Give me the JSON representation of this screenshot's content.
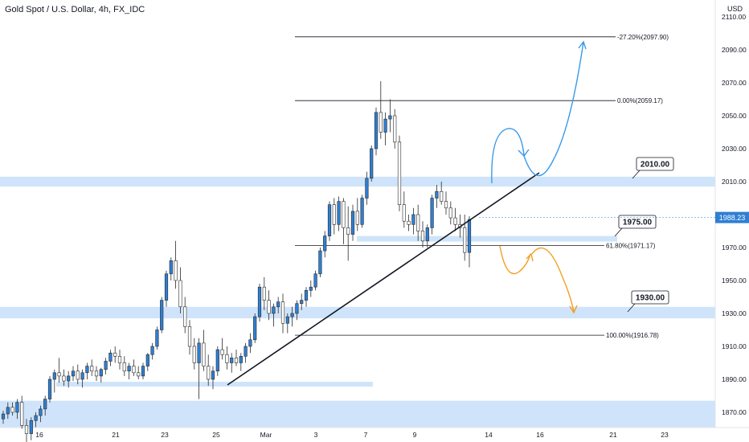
{
  "chart_title": "Gold Spot / U.S. Dollar, 4h, FX_IDC",
  "currency": "USD",
  "chart_data": {
    "type": "candlestick",
    "symbol": "Gold Spot / U.S. Dollar",
    "interval": "4h",
    "source": "FX_IDC",
    "price_axis": {
      "ticks": [
        1870,
        1890,
        1910,
        1930,
        1950,
        1970,
        1990,
        2010,
        2030,
        2050,
        2070,
        2090,
        2110
      ],
      "tick_labels": [
        "1870.00",
        "1890.00",
        "1910.00",
        "1930.00",
        "1950.00",
        "1970.00",
        "1990.00",
        "2010.00",
        "2030.00",
        "2050.00",
        "2070.00",
        "2090.00",
        "2110.00"
      ],
      "range": [
        1861,
        2117
      ]
    },
    "time_axis": {
      "labels": [
        "16",
        "21",
        "23",
        "25",
        "Mar",
        "3",
        "7",
        "9",
        "14",
        "16",
        "21",
        "23"
      ]
    },
    "current_price": "1988.23",
    "colors": {
      "up": "#2f7fd3",
      "down": "#ffffff",
      "wick": "#2b2b2b",
      "zone": "#cfe4fa",
      "up_arrow": "#3a9ae8",
      "down_arrow": "#f0a020"
    },
    "candles": [
      [
        1866,
        1871,
        1863,
        1869
      ],
      [
        1869,
        1876,
        1866,
        1873
      ],
      [
        1873,
        1876,
        1868,
        1870
      ],
      [
        1870,
        1878,
        1866,
        1876
      ],
      [
        1876,
        1880,
        1860,
        1862
      ],
      [
        1862,
        1866,
        1852,
        1857
      ],
      [
        1857,
        1867,
        1853,
        1865
      ],
      [
        1865,
        1870,
        1861,
        1868
      ],
      [
        1868,
        1874,
        1864,
        1872
      ],
      [
        1872,
        1880,
        1868,
        1878
      ],
      [
        1878,
        1892,
        1876,
        1890
      ],
      [
        1890,
        1896,
        1882,
        1894
      ],
      [
        1894,
        1903,
        1888,
        1892
      ],
      [
        1892,
        1896,
        1886,
        1889
      ],
      [
        1889,
        1895,
        1885,
        1892
      ],
      [
        1892,
        1898,
        1889,
        1895
      ],
      [
        1895,
        1899,
        1887,
        1890
      ],
      [
        1890,
        1896,
        1885,
        1894
      ],
      [
        1894,
        1900,
        1890,
        1898
      ],
      [
        1898,
        1902,
        1892,
        1895
      ],
      [
        1895,
        1898,
        1889,
        1892
      ],
      [
        1892,
        1897,
        1888,
        1896
      ],
      [
        1896,
        1903,
        1893,
        1901
      ],
      [
        1901,
        1908,
        1898,
        1906
      ],
      [
        1906,
        1910,
        1900,
        1904
      ],
      [
        1904,
        1908,
        1896,
        1900
      ],
      [
        1900,
        1904,
        1892,
        1895
      ],
      [
        1895,
        1900,
        1890,
        1898
      ],
      [
        1898,
        1902,
        1892,
        1894
      ],
      [
        1894,
        1898,
        1890,
        1892
      ],
      [
        1892,
        1900,
        1890,
        1898
      ],
      [
        1898,
        1906,
        1895,
        1905
      ],
      [
        1905,
        1912,
        1902,
        1910
      ],
      [
        1910,
        1922,
        1908,
        1920
      ],
      [
        1920,
        1940,
        1918,
        1938
      ],
      [
        1938,
        1956,
        1934,
        1954
      ],
      [
        1954,
        1964,
        1950,
        1962
      ],
      [
        1962,
        1974,
        1945,
        1950
      ],
      [
        1950,
        1958,
        1930,
        1934
      ],
      [
        1934,
        1940,
        1918,
        1922
      ],
      [
        1922,
        1926,
        1905,
        1910
      ],
      [
        1910,
        1915,
        1896,
        1900
      ],
      [
        1900,
        1915,
        1878,
        1912
      ],
      [
        1912,
        1920,
        1895,
        1898
      ],
      [
        1898,
        1905,
        1886,
        1890
      ],
      [
        1890,
        1898,
        1884,
        1895
      ],
      [
        1895,
        1910,
        1892,
        1908
      ],
      [
        1908,
        1915,
        1902,
        1905
      ],
      [
        1905,
        1910,
        1896,
        1900
      ],
      [
        1900,
        1906,
        1894,
        1903
      ],
      [
        1903,
        1908,
        1898,
        1900
      ],
      [
        1900,
        1906,
        1895,
        1904
      ],
      [
        1904,
        1912,
        1900,
        1910
      ],
      [
        1910,
        1918,
        1906,
        1914
      ],
      [
        1914,
        1930,
        1912,
        1928
      ],
      [
        1928,
        1948,
        1925,
        1946
      ],
      [
        1946,
        1952,
        1932,
        1938
      ],
      [
        1938,
        1944,
        1926,
        1930
      ],
      [
        1930,
        1936,
        1922,
        1934
      ],
      [
        1934,
        1940,
        1930,
        1937
      ],
      [
        1937,
        1942,
        1918,
        1924
      ],
      [
        1924,
        1930,
        1918,
        1928
      ],
      [
        1928,
        1934,
        1922,
        1930
      ],
      [
        1930,
        1938,
        1926,
        1936
      ],
      [
        1936,
        1942,
        1932,
        1938
      ],
      [
        1938,
        1946,
        1934,
        1944
      ],
      [
        1944,
        1950,
        1940,
        1946
      ],
      [
        1946,
        1956,
        1944,
        1954
      ],
      [
        1954,
        1970,
        1952,
        1968
      ],
      [
        1968,
        1980,
        1964,
        1977
      ],
      [
        1977,
        1998,
        1974,
        1996
      ],
      [
        1996,
        2000,
        1978,
        1984
      ],
      [
        1984,
        2001,
        1980,
        1998
      ],
      [
        1998,
        2000,
        1972,
        1982
      ],
      [
        1982,
        1995,
        1962,
        1978
      ],
      [
        1978,
        1996,
        1974,
        1992
      ],
      [
        1992,
        2000,
        1980,
        1984
      ],
      [
        1984,
        2002,
        1982,
        2000
      ],
      [
        2000,
        2016,
        1996,
        2012
      ],
      [
        2012,
        2032,
        2010,
        2030
      ],
      [
        2030,
        2055,
        2026,
        2052
      ],
      [
        2052,
        2071,
        2036,
        2040
      ],
      [
        2040,
        2052,
        2032,
        2048
      ],
      [
        2048,
        2060,
        2040,
        2050
      ],
      [
        2050,
        2054,
        2030,
        2034
      ],
      [
        2034,
        2038,
        1992,
        1996
      ],
      [
        1996,
        2004,
        1982,
        1986
      ],
      [
        1986,
        1990,
        1980,
        1984
      ],
      [
        1984,
        1994,
        1978,
        1990
      ],
      [
        1990,
        1996,
        1974,
        1980
      ],
      [
        1980,
        1986,
        1970,
        1974
      ],
      [
        1974,
        1984,
        1970,
        1982
      ],
      [
        1982,
        2002,
        1978,
        2000
      ],
      [
        2000,
        2008,
        1994,
        2004
      ],
      [
        2004,
        2010,
        1996,
        1998
      ],
      [
        1998,
        2004,
        1990,
        1994
      ],
      [
        1994,
        1998,
        1984,
        1988
      ],
      [
        1988,
        1994,
        1980,
        1984
      ],
      [
        1984,
        1990,
        1976,
        1982
      ],
      [
        1982,
        1990,
        1962,
        1967
      ],
      [
        1967,
        1989,
        1958,
        1987
      ]
    ],
    "levels": [
      {
        "label": "-27.20%(2097.90)",
        "value": 2097.9
      },
      {
        "label": "0.00%(2059.17)",
        "value": 2059.17
      },
      {
        "label": "61.80%(1971.17)",
        "value": 1971.17
      },
      {
        "label": "100.00%(1916.78)",
        "value": 1916.78
      }
    ],
    "zones": [
      {
        "from": 2007,
        "to": 2013
      },
      {
        "from": 1927,
        "to": 1934
      },
      {
        "from": 1861,
        "to": 1877
      }
    ],
    "callouts": [
      "2010.00",
      "1975.00",
      "1930.00"
    ]
  }
}
